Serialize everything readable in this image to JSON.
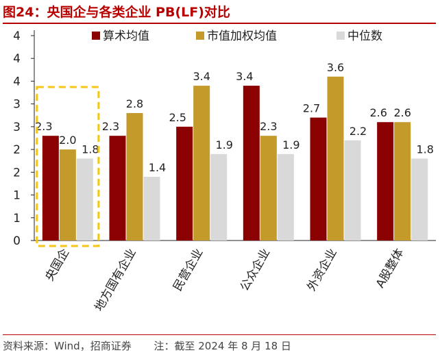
{
  "title": "图24：央国企与各类企业 PB(LF)对比",
  "footer": {
    "source": "资料来源：Wind，招商证券",
    "note": "注：截至 2024 年 8 月 18 日"
  },
  "colors": {
    "series": [
      "#8b0000",
      "#c49a2a",
      "#d9d9d9"
    ],
    "title": "#b80000",
    "highlight": "#f5c518"
  },
  "chart_data": {
    "type": "bar",
    "title": "央国企与各类企业 PB(LF)对比",
    "categories": [
      "央国企",
      "地方国有企业",
      "民营企业",
      "公众企业",
      "外资企业",
      "A股整体"
    ],
    "series": [
      {
        "name": "算术均值",
        "values": [
          2.3,
          2.3,
          2.5,
          3.4,
          2.7,
          2.6
        ]
      },
      {
        "name": "市值加权均值",
        "values": [
          2.0,
          2.8,
          3.4,
          2.3,
          3.6,
          2.6
        ]
      },
      {
        "name": "中位数",
        "values": [
          1.8,
          1.4,
          1.9,
          1.9,
          2.2,
          1.8
        ]
      }
    ],
    "value_labels": [
      [
        "2.3",
        "2.3",
        "2.5",
        "3.4",
        "2.7",
        "2.6"
      ],
      [
        "2.0",
        "2.8",
        "3.4",
        "2.3",
        "3.6",
        "2.6"
      ],
      [
        "1.8",
        "1.4",
        "1.9",
        "1.9",
        "2.2",
        "1.8"
      ]
    ],
    "ylim": [
      0,
      4.5
    ],
    "ytick_values": [
      0,
      0.5,
      1,
      1.5,
      2,
      2.5,
      3,
      3.5,
      4,
      4.5
    ],
    "ytick_labels": [
      "0",
      "1",
      "1",
      "2",
      "2",
      "3",
      "3",
      "4",
      "4",
      "4"
    ],
    "legend_position": "top",
    "highlighted_category": "央国企",
    "xlabel": "",
    "ylabel": ""
  }
}
